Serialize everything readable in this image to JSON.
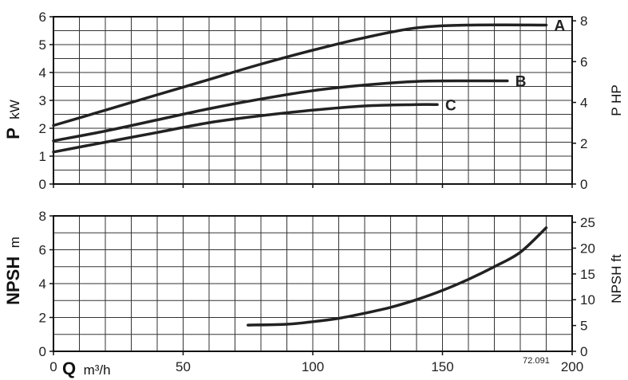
{
  "chart_data": [
    {
      "type": "line",
      "x_unit_bold": "Q",
      "x_unit_rest": "m³/h",
      "xlim": [
        0,
        200
      ],
      "x_ticks": [
        0,
        50,
        100,
        150,
        200
      ],
      "ylim": [
        0,
        6
      ],
      "y_ticks": [
        0,
        1,
        2,
        3,
        4,
        5,
        6
      ],
      "ylabel_bold": "P",
      "ylabel_unit": "kW",
      "y2lim": [
        0,
        8.2
      ],
      "y2_ticks": [
        0,
        2,
        4,
        6,
        8
      ],
      "y2label": "P HP",
      "grid": true,
      "series": [
        {
          "name": "A",
          "x": [
            0,
            20,
            40,
            60,
            80,
            100,
            120,
            140,
            160,
            190
          ],
          "y": [
            2.1,
            2.65,
            3.2,
            3.75,
            4.3,
            4.8,
            5.25,
            5.6,
            5.7,
            5.7
          ]
        },
        {
          "name": "B",
          "x": [
            0,
            20,
            40,
            60,
            80,
            100,
            120,
            140,
            160,
            175
          ],
          "y": [
            1.55,
            1.9,
            2.3,
            2.7,
            3.05,
            3.35,
            3.55,
            3.68,
            3.7,
            3.7
          ]
        },
        {
          "name": "C",
          "x": [
            0,
            20,
            40,
            60,
            80,
            100,
            120,
            140,
            148
          ],
          "y": [
            1.15,
            1.5,
            1.85,
            2.2,
            2.45,
            2.65,
            2.8,
            2.85,
            2.85
          ]
        }
      ]
    },
    {
      "type": "line",
      "xlim": [
        0,
        200
      ],
      "x_ticks": [
        0,
        50,
        100,
        150,
        200
      ],
      "ylim": [
        0,
        8
      ],
      "y_ticks": [
        0,
        2,
        4,
        6,
        8
      ],
      "ylabel_bold": "NPSH",
      "ylabel_unit": "m",
      "y2lim": [
        0,
        26.25
      ],
      "y2_ticks": [
        0,
        5,
        10,
        15,
        20,
        25
      ],
      "y2label": "NPSH ft",
      "grid": true,
      "annotation": "72.091",
      "series": [
        {
          "name": "",
          "x": [
            75,
            90,
            100,
            110,
            120,
            130,
            140,
            150,
            160,
            170,
            180,
            190
          ],
          "y": [
            1.55,
            1.6,
            1.75,
            1.95,
            2.25,
            2.6,
            3.05,
            3.6,
            4.25,
            5.0,
            5.85,
            7.3
          ]
        }
      ]
    }
  ]
}
